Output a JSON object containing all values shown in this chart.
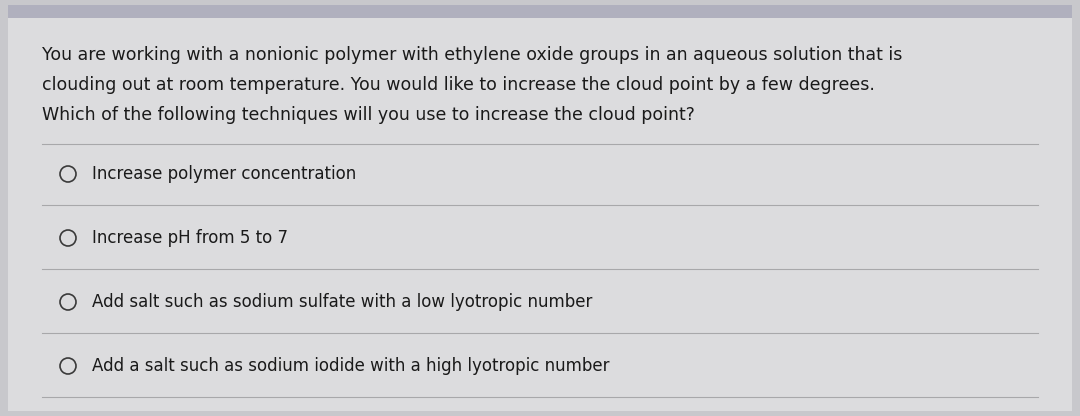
{
  "background_color": "#c8c8cc",
  "card_color": "#dcdcde",
  "question_text_line1": "You are working with a nonionic polymer with ethylene oxide groups in an aqueous solution that is",
  "question_text_line2": "clouding out at room temperature. You would like to increase the cloud point by a few degrees.",
  "question_text_line3": "Which of the following techniques will you use to increase the cloud point?",
  "options": [
    "Increase polymer concentration",
    "Increase pH from 5 to 7",
    "Add salt such as sodium sulfate with a low lyotropic number",
    "Add a salt such as sodium iodide with a high lyotropic number"
  ],
  "text_color": "#1a1a1a",
  "divider_color": "#a8a8aa",
  "circle_color": "#3a3a3a",
  "question_fontsize": 12.5,
  "option_fontsize": 12.0,
  "top_bar_color": "#9898a8",
  "top_strip_color": "#b0b0be"
}
